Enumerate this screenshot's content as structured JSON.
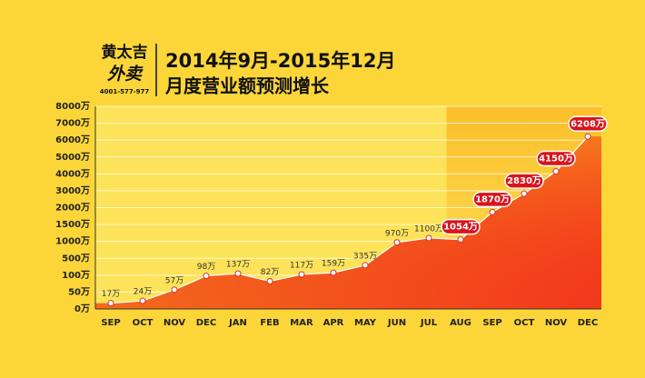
{
  "chart_data": {
    "type": "line",
    "logo": {
      "name": "黄太吉",
      "brand": "外卖",
      "phone": "4001-577-977"
    },
    "title": "2014年9月-2015年12月",
    "subtitle": "月度营业额预测增长",
    "categories": [
      "SEP",
      "OCT",
      "NOV",
      "DEC",
      "JAN",
      "FEB",
      "MAR",
      "APR",
      "MAY",
      "JUN",
      "JUL",
      "AUG",
      "SEP",
      "OCT",
      "NOV",
      "DEC"
    ],
    "values": [
      17,
      24,
      57,
      98,
      137,
      82,
      117,
      159,
      335,
      970,
      1100,
      1054,
      1870,
      2830,
      4150,
      6208
    ],
    "value_labels": [
      "17万",
      "24万",
      "57万",
      "98万",
      "137万",
      "82万",
      "117万",
      "159万",
      "335万",
      "970万",
      "1100万",
      "1054万",
      "1870万",
      "2830万",
      "4150万",
      "6208万"
    ],
    "highlight_start": 11,
    "color": "#f05a1a",
    "ylim": [
      0,
      8000
    ],
    "yticks": [
      {
        "value": 0,
        "label": "0万"
      },
      {
        "value": 50,
        "label": "50万"
      },
      {
        "value": 100,
        "label": "100万"
      },
      {
        "value": 500,
        "label": "500万"
      },
      {
        "value": 1000,
        "label": "1000万"
      },
      {
        "value": 1500,
        "label": "1500万"
      },
      {
        "value": 2000,
        "label": "2000万"
      },
      {
        "value": 3000,
        "label": "3000万"
      },
      {
        "value": 4000,
        "label": "4000万"
      },
      {
        "value": 5000,
        "label": "5000万"
      },
      {
        "value": 6000,
        "label": "6000万"
      },
      {
        "value": 7000,
        "label": "7000万"
      },
      {
        "value": 8000,
        "label": "8000万"
      }
    ],
    "grid": true
  }
}
